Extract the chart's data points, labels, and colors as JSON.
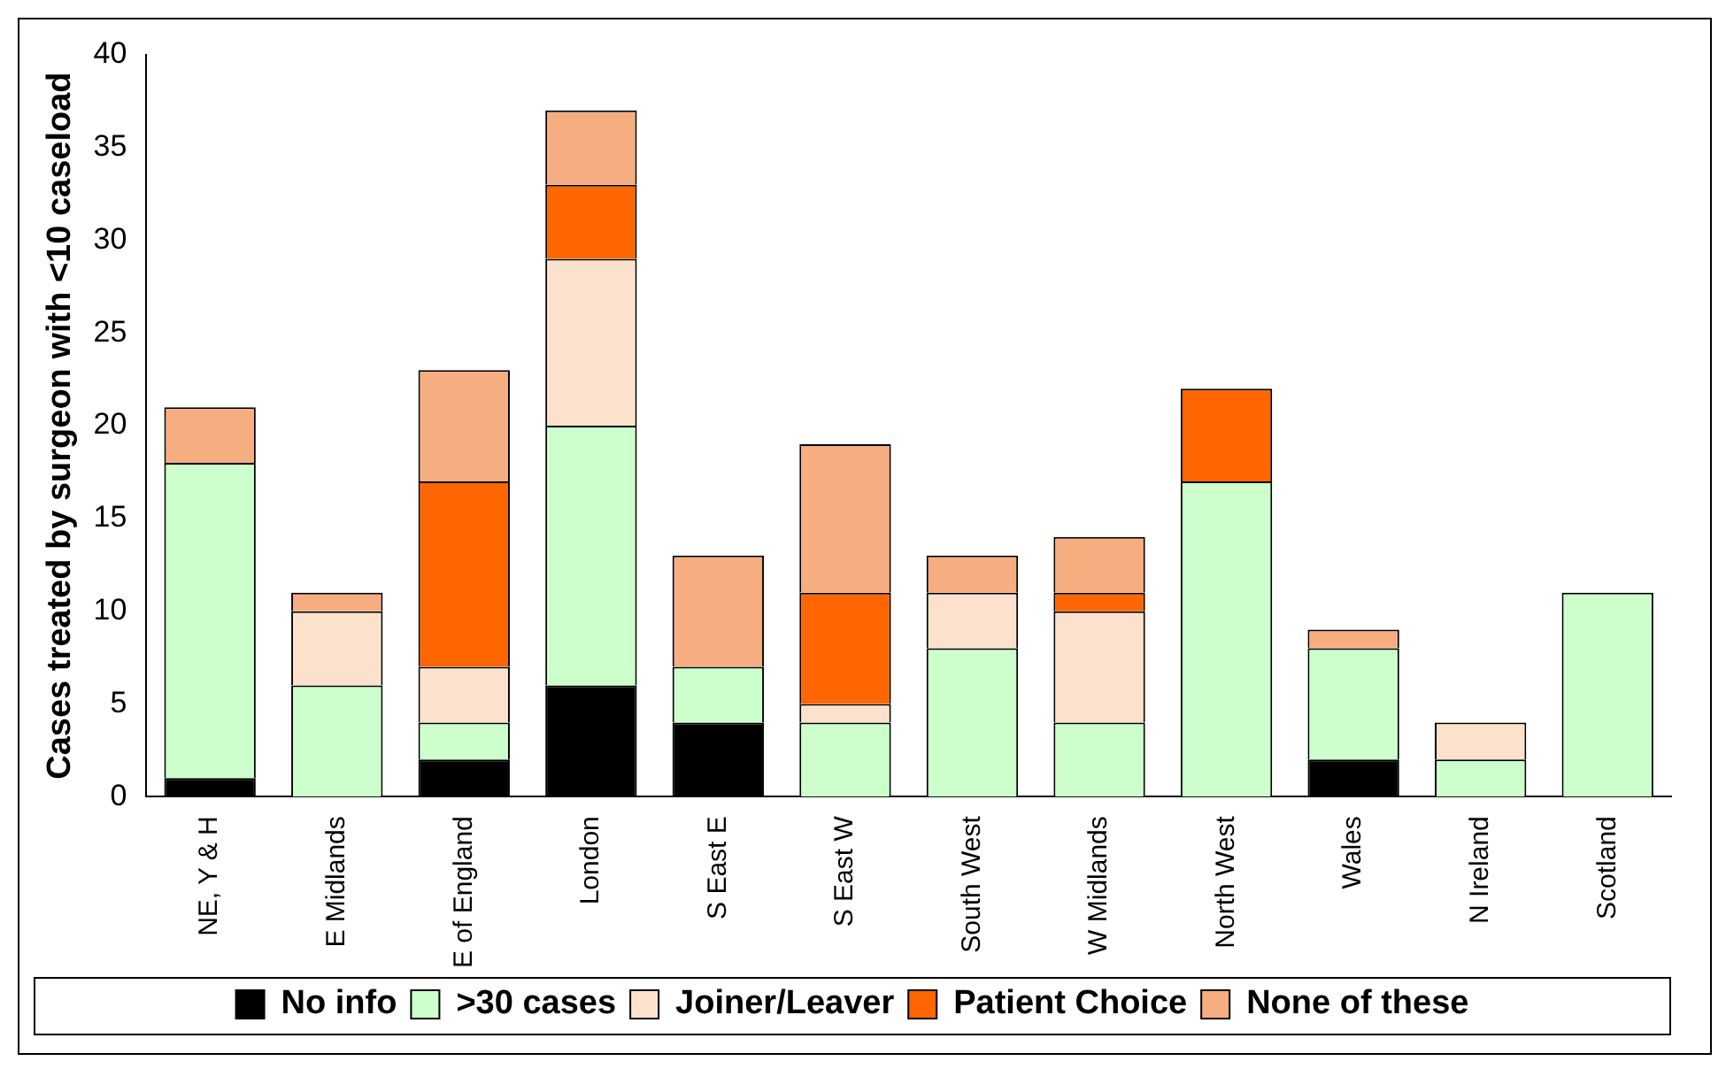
{
  "chart_data": {
    "type": "bar",
    "stacked": true,
    "ylabel": "Cases treated by surgeon with <10 caseload",
    "categories": [
      "NE, Y & H",
      "E Midlands",
      "E of England",
      "London",
      "S East E",
      "S East W",
      "South West",
      "W Midlands",
      "North West",
      "Wales",
      "N Ireland",
      "Scotland"
    ],
    "series": [
      {
        "name": "No info",
        "color": "#000000",
        "values": [
          1,
          0,
          2,
          6,
          4,
          0,
          0,
          0,
          0,
          2,
          0,
          0
        ]
      },
      {
        "name": ">30 cases",
        "color": "#ccffcc",
        "values": [
          17,
          6,
          2,
          14,
          3,
          4,
          8,
          4,
          17,
          6,
          2,
          11
        ]
      },
      {
        "name": "Joiner/Leaver",
        "color": "#fce2cc",
        "values": [
          0,
          4,
          3,
          9,
          0,
          1,
          3,
          6,
          0,
          0,
          2,
          0
        ]
      },
      {
        "name": "Patient Choice",
        "color": "#ff6600",
        "values": [
          0,
          0,
          10,
          4,
          0,
          6,
          0,
          1,
          5,
          0,
          0,
          0
        ]
      },
      {
        "name": "None of these",
        "color": "#f6ad80",
        "values": [
          3,
          1,
          6,
          4,
          6,
          8,
          2,
          3,
          0,
          1,
          0,
          0
        ]
      }
    ],
    "ylim": [
      0,
      40
    ],
    "yticks": [
      0,
      5,
      10,
      15,
      20,
      25,
      30,
      35,
      40
    ],
    "grid": false,
    "legend": "bottom"
  }
}
